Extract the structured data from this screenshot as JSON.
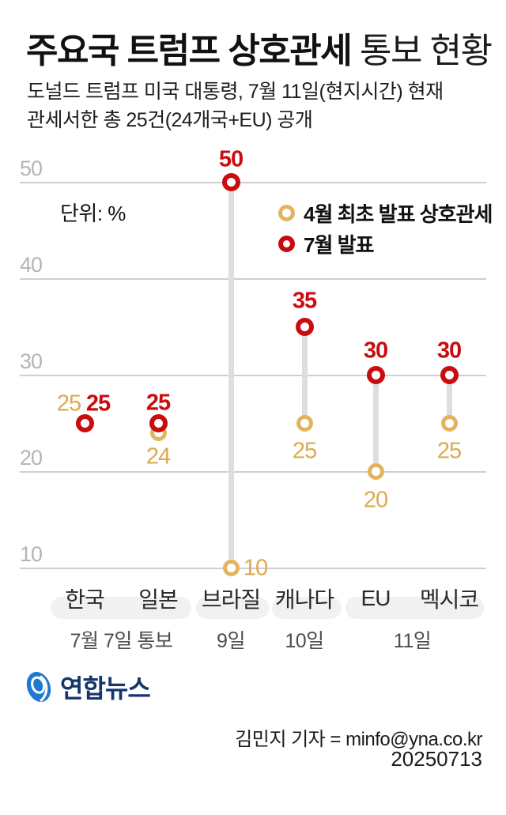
{
  "header": {
    "title_bold": "주요국 트럼프 상호관세",
    "title_light": " 통보 현황",
    "subtitle_line1": "도널드 트럼프 미국 대통령, 7월 11일(현지시간) 현재",
    "subtitle_line2": "관세서한 총 25건(24개국+EU) 공개"
  },
  "chart_data": {
    "type": "scatter",
    "variant": "dumbbell-dot-plot",
    "unit_label": "단위: %",
    "categories": [
      "한국",
      "일본",
      "브라질",
      "캐나다",
      "EU",
      "멕시코"
    ],
    "series": [
      {
        "name": "4월 최초 발표 상호관세",
        "values": [
          25,
          24,
          10,
          25,
          20,
          25
        ]
      },
      {
        "name": "7월 발표",
        "values": [
          25,
          25,
          50,
          35,
          30,
          30
        ]
      }
    ],
    "date_groups": [
      {
        "label": "7월 7일 통보",
        "span": [
          0,
          1
        ]
      },
      {
        "label": "9일",
        "span": [
          2,
          2
        ]
      },
      {
        "label": "10일",
        "span": [
          3,
          3
        ]
      },
      {
        "label": "11일",
        "span": [
          4,
          5
        ]
      }
    ],
    "yticks": [
      10,
      20,
      30,
      40,
      50
    ],
    "ylim": [
      10,
      50
    ],
    "grid": true,
    "legend_position": "top-right"
  },
  "colors": {
    "april": "#e3b45f",
    "april_label": "#dcaa50",
    "july": "#c90c10",
    "grid": "#cfcfcf",
    "connector": "#dedede",
    "tick_label": "#b5b5b5",
    "pill": "#f1f1f1",
    "logo_blue": "#2079d0",
    "logo_navy": "#15356e"
  },
  "footer": {
    "logo_text": "연합뉴스",
    "credit": "김민지 기자 = minfo@yna.co.kr",
    "date_code": "20250713"
  }
}
